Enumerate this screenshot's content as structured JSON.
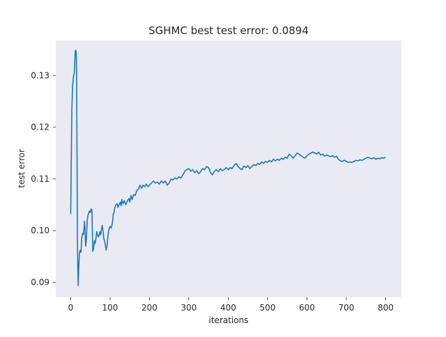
{
  "chart_data": {
    "type": "line",
    "title": "SGHMC best test error: 0.0894",
    "xlabel": "iterations",
    "ylabel": "test error",
    "xlim": [
      -38,
      840
    ],
    "ylim": [
      0.0871,
      0.1368
    ],
    "xticks": [
      0,
      100,
      200,
      300,
      400,
      500,
      600,
      700,
      800
    ],
    "yticks": [
      0.09,
      0.1,
      0.11,
      0.12,
      0.13
    ],
    "ytick_labels": [
      "0.09",
      "0.10",
      "0.11",
      "0.12",
      "0.13"
    ],
    "grid": false,
    "background": "#eaeaf2",
    "series": [
      {
        "color": "#1f77b4",
        "points": [
          [
            0,
            0.1032
          ],
          [
            1,
            0.1105
          ],
          [
            2,
            0.118
          ],
          [
            3,
            0.1238
          ],
          [
            5,
            0.1282
          ],
          [
            7,
            0.1298
          ],
          [
            9,
            0.1305
          ],
          [
            10,
            0.132
          ],
          [
            11,
            0.134
          ],
          [
            12,
            0.1348
          ],
          [
            13,
            0.1349
          ],
          [
            14,
            0.1345
          ],
          [
            15,
            0.13
          ],
          [
            16,
            0.115
          ],
          [
            17,
            0.099
          ],
          [
            18,
            0.0928
          ],
          [
            19,
            0.0894
          ],
          [
            20,
            0.092
          ],
          [
            22,
            0.0955
          ],
          [
            24,
            0.0962
          ],
          [
            26,
            0.0958
          ],
          [
            28,
            0.0985
          ],
          [
            30,
            0.0995
          ],
          [
            32,
            0.0992
          ],
          [
            34,
            0.1005
          ],
          [
            35,
            0.1018
          ],
          [
            36,
            0.1008
          ],
          [
            38,
            0.097
          ],
          [
            40,
            0.0985
          ],
          [
            42,
            0.102
          ],
          [
            44,
            0.103
          ],
          [
            46,
            0.1035
          ],
          [
            48,
            0.1038
          ],
          [
            50,
            0.1035
          ],
          [
            52,
            0.1042
          ],
          [
            54,
            0.104
          ],
          [
            55,
            0.1
          ],
          [
            56,
            0.096
          ],
          [
            58,
            0.0965
          ],
          [
            60,
            0.098
          ],
          [
            62,
            0.0975
          ],
          [
            64,
            0.0985
          ],
          [
            66,
            0.0998
          ],
          [
            68,
            0.0992
          ],
          [
            70,
            0.0988
          ],
          [
            72,
            0.099
          ],
          [
            74,
            0.0998
          ],
          [
            76,
            0.0992
          ],
          [
            78,
            0.1002
          ],
          [
            80,
            0.101
          ],
          [
            82,
            0.1
          ],
          [
            84,
            0.0985
          ],
          [
            86,
            0.098
          ],
          [
            88,
            0.0972
          ],
          [
            90,
            0.0962
          ],
          [
            92,
            0.097
          ],
          [
            94,
            0.0985
          ],
          [
            96,
            0.0998
          ],
          [
            98,
            0.1005
          ],
          [
            100,
            0.1008
          ],
          [
            103,
            0.1005
          ],
          [
            106,
            0.1015
          ],
          [
            108,
            0.1032
          ],
          [
            110,
            0.1035
          ],
          [
            112,
            0.1045
          ],
          [
            115,
            0.105
          ],
          [
            118,
            0.1052
          ],
          [
            120,
            0.1045
          ],
          [
            123,
            0.105
          ],
          [
            126,
            0.1055
          ],
          [
            128,
            0.1048
          ],
          [
            130,
            0.106
          ],
          [
            133,
            0.1052
          ],
          [
            136,
            0.1058
          ],
          [
            140,
            0.105
          ],
          [
            144,
            0.1058
          ],
          [
            148,
            0.1062
          ],
          [
            150,
            0.1055
          ],
          [
            153,
            0.1068
          ],
          [
            156,
            0.106
          ],
          [
            160,
            0.107
          ],
          [
            164,
            0.1068
          ],
          [
            168,
            0.1078
          ],
          [
            172,
            0.108
          ],
          [
            176,
            0.1088
          ],
          [
            180,
            0.1082
          ],
          [
            184,
            0.1088
          ],
          [
            188,
            0.1085
          ],
          [
            192,
            0.109
          ],
          [
            196,
            0.1085
          ],
          [
            200,
            0.1088
          ],
          [
            205,
            0.1092
          ],
          [
            210,
            0.1096
          ],
          [
            215,
            0.1092
          ],
          [
            220,
            0.1094
          ],
          [
            225,
            0.109
          ],
          [
            230,
            0.1096
          ],
          [
            235,
            0.1092
          ],
          [
            240,
            0.1096
          ],
          [
            245,
            0.1088
          ],
          [
            250,
            0.1092
          ],
          [
            255,
            0.11
          ],
          [
            260,
            0.1098
          ],
          [
            265,
            0.1102
          ],
          [
            270,
            0.11
          ],
          [
            275,
            0.1104
          ],
          [
            280,
            0.1102
          ],
          [
            285,
            0.1108
          ],
          [
            290,
            0.1115
          ],
          [
            295,
            0.1118
          ],
          [
            300,
            0.112
          ],
          [
            305,
            0.1115
          ],
          [
            310,
            0.1118
          ],
          [
            315,
            0.1112
          ],
          [
            320,
            0.1116
          ],
          [
            325,
            0.111
          ],
          [
            330,
            0.1114
          ],
          [
            335,
            0.112
          ],
          [
            340,
            0.1118
          ],
          [
            345,
            0.1124
          ],
          [
            350,
            0.1122
          ],
          [
            355,
            0.1112
          ],
          [
            360,
            0.1108
          ],
          [
            365,
            0.1115
          ],
          [
            370,
            0.1118
          ],
          [
            375,
            0.1114
          ],
          [
            380,
            0.112
          ],
          [
            385,
            0.1116
          ],
          [
            390,
            0.1118
          ],
          [
            395,
            0.1122
          ],
          [
            400,
            0.1118
          ],
          [
            405,
            0.1122
          ],
          [
            410,
            0.112
          ],
          [
            415,
            0.1126
          ],
          [
            420,
            0.113
          ],
          [
            425,
            0.1124
          ],
          [
            430,
            0.112
          ],
          [
            435,
            0.1118
          ],
          [
            440,
            0.1125
          ],
          [
            445,
            0.1122
          ],
          [
            450,
            0.1126
          ],
          [
            455,
            0.112
          ],
          [
            460,
            0.1124
          ],
          [
            465,
            0.1128
          ],
          [
            470,
            0.1126
          ],
          [
            475,
            0.113
          ],
          [
            480,
            0.1128
          ],
          [
            485,
            0.1133
          ],
          [
            490,
            0.113
          ],
          [
            495,
            0.1134
          ],
          [
            500,
            0.1132
          ],
          [
            505,
            0.1136
          ],
          [
            510,
            0.1133
          ],
          [
            515,
            0.1138
          ],
          [
            520,
            0.1135
          ],
          [
            525,
            0.1138
          ],
          [
            530,
            0.1136
          ],
          [
            535,
            0.114
          ],
          [
            540,
            0.1138
          ],
          [
            545,
            0.1142
          ],
          [
            550,
            0.114
          ],
          [
            555,
            0.1148
          ],
          [
            560,
            0.1145
          ],
          [
            565,
            0.114
          ],
          [
            570,
            0.1145
          ],
          [
            575,
            0.115
          ],
          [
            580,
            0.1148
          ],
          [
            585,
            0.1145
          ],
          [
            590,
            0.1142
          ],
          [
            595,
            0.114
          ],
          [
            600,
            0.1145
          ],
          [
            605,
            0.1148
          ],
          [
            610,
            0.115
          ],
          [
            615,
            0.1152
          ],
          [
            620,
            0.115
          ],
          [
            625,
            0.1148
          ],
          [
            630,
            0.1152
          ],
          [
            635,
            0.1146
          ],
          [
            640,
            0.1148
          ],
          [
            645,
            0.1144
          ],
          [
            650,
            0.1146
          ],
          [
            655,
            0.1145
          ],
          [
            660,
            0.1143
          ],
          [
            665,
            0.1145
          ],
          [
            670,
            0.1142
          ],
          [
            675,
            0.1144
          ],
          [
            680,
            0.1138
          ],
          [
            685,
            0.1135
          ],
          [
            690,
            0.1134
          ],
          [
            695,
            0.1136
          ],
          [
            700,
            0.1134
          ],
          [
            705,
            0.1132
          ],
          [
            710,
            0.1133
          ],
          [
            715,
            0.1132
          ],
          [
            720,
            0.1134
          ],
          [
            725,
            0.1136
          ],
          [
            730,
            0.1135
          ],
          [
            735,
            0.1137
          ],
          [
            740,
            0.1136
          ],
          [
            745,
            0.1138
          ],
          [
            750,
            0.114
          ],
          [
            755,
            0.1142
          ],
          [
            760,
            0.114
          ],
          [
            765,
            0.1139
          ],
          [
            770,
            0.1141
          ],
          [
            775,
            0.1138
          ],
          [
            780,
            0.114
          ],
          [
            785,
            0.1139
          ],
          [
            790,
            0.1141
          ],
          [
            795,
            0.114
          ],
          [
            800,
            0.1142
          ]
        ]
      }
    ]
  }
}
